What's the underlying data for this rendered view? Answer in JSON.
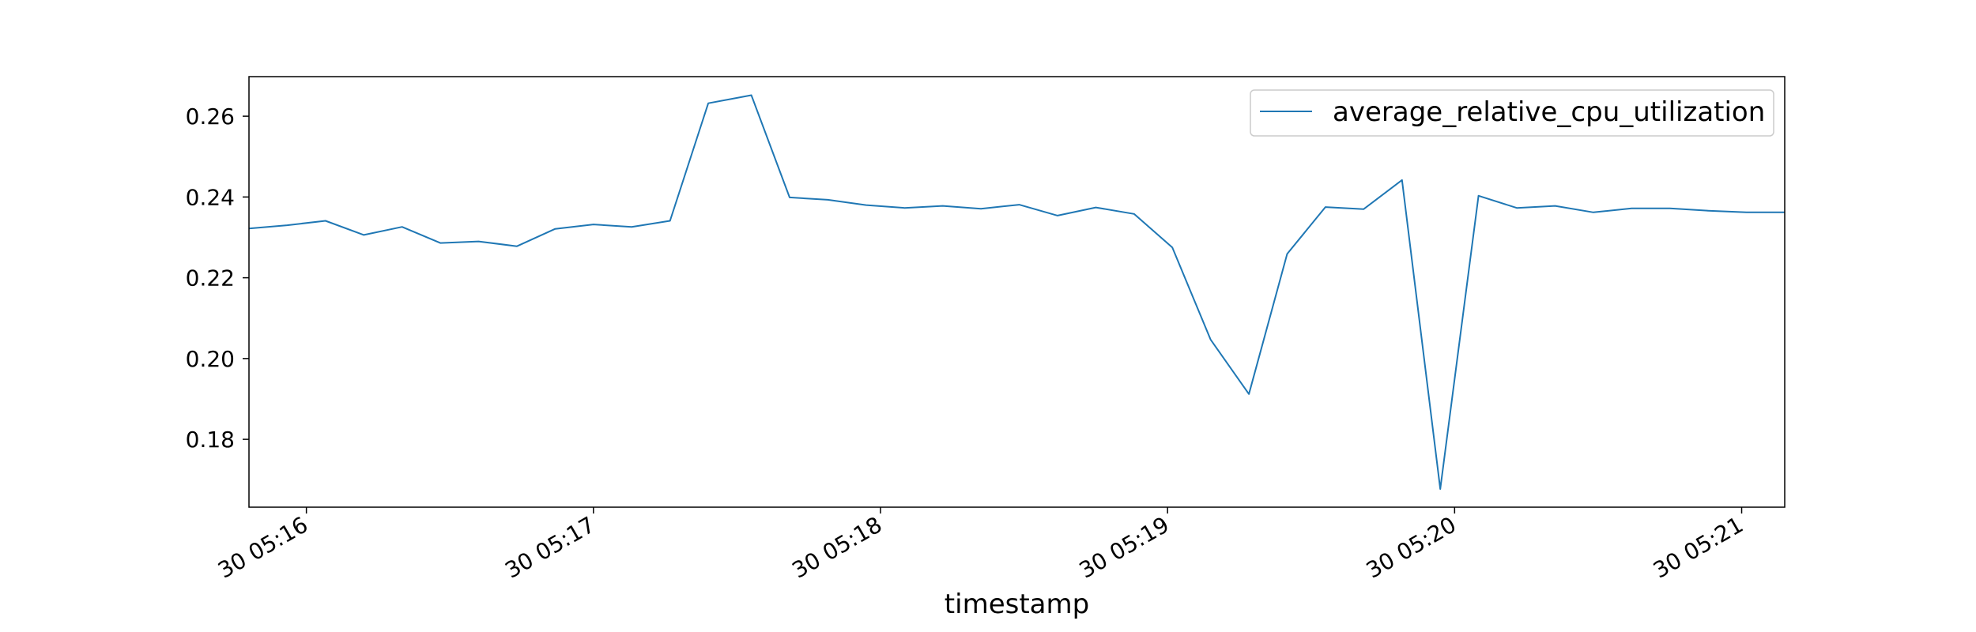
{
  "chart_data": {
    "type": "line",
    "title": "",
    "xlabel": "timestamp",
    "ylabel": "",
    "ylim": [
      0.1632,
      0.2698
    ],
    "xlim": [
      "30 05:15:48",
      "30 05:21:09"
    ],
    "grid": false,
    "legend": "top-right",
    "color": "#1f77b4",
    "x_ticks": [
      {
        "time": "30 05:16:00",
        "label": "30 05:16"
      },
      {
        "time": "30 05:17:00",
        "label": "30 05:17"
      },
      {
        "time": "30 05:18:00",
        "label": "30 05:18"
      },
      {
        "time": "30 05:19:00",
        "label": "30 05:19"
      },
      {
        "time": "30 05:20:00",
        "label": "30 05:20"
      },
      {
        "time": "30 05:21:00",
        "label": "30 05:21"
      }
    ],
    "y_ticks": [
      {
        "value": 0.18,
        "label": "0.18"
      },
      {
        "value": 0.2,
        "label": "0.20"
      },
      {
        "value": 0.22,
        "label": "0.22"
      },
      {
        "value": 0.24,
        "label": "0.24"
      },
      {
        "value": 0.26,
        "label": "0.26"
      }
    ],
    "series": [
      {
        "name": "average_relative_cpu_utilization",
        "x": [
          "30 05:15:48",
          "30 05:15:56",
          "30 05:16:04",
          "30 05:16:12",
          "30 05:16:20",
          "30 05:16:28",
          "30 05:16:36",
          "30 05:16:44",
          "30 05:16:52",
          "30 05:17:00",
          "30 05:17:08",
          "30 05:17:16",
          "30 05:17:24",
          "30 05:17:33",
          "30 05:17:41",
          "30 05:17:49",
          "30 05:17:57",
          "30 05:18:05",
          "30 05:18:13",
          "30 05:18:21",
          "30 05:18:29",
          "30 05:18:37",
          "30 05:18:45",
          "30 05:18:53",
          "30 05:19:01",
          "30 05:19:09",
          "30 05:19:17",
          "30 05:19:25",
          "30 05:19:33",
          "30 05:19:41",
          "30 05:19:49",
          "30 05:19:57",
          "30 05:20:05",
          "30 05:20:13",
          "30 05:20:21",
          "30 05:20:29",
          "30 05:20:37",
          "30 05:20:45",
          "30 05:20:53",
          "30 05:21:01",
          "30 05:21:09"
        ],
        "values": [
          0.2322,
          0.233,
          0.2341,
          0.2306,
          0.2326,
          0.2286,
          0.229,
          0.2278,
          0.2321,
          0.2332,
          0.2326,
          0.2341,
          0.2632,
          0.2652,
          0.2399,
          0.2393,
          0.238,
          0.2373,
          0.2378,
          0.2371,
          0.2381,
          0.2354,
          0.2374,
          0.2358,
          0.2275,
          0.2047,
          0.1912,
          0.2259,
          0.2375,
          0.237,
          0.2442,
          0.1677,
          0.2403,
          0.2373,
          0.2378,
          0.2362,
          0.2372,
          0.2372,
          0.2366,
          0.2362,
          0.2362
        ]
      }
    ]
  }
}
